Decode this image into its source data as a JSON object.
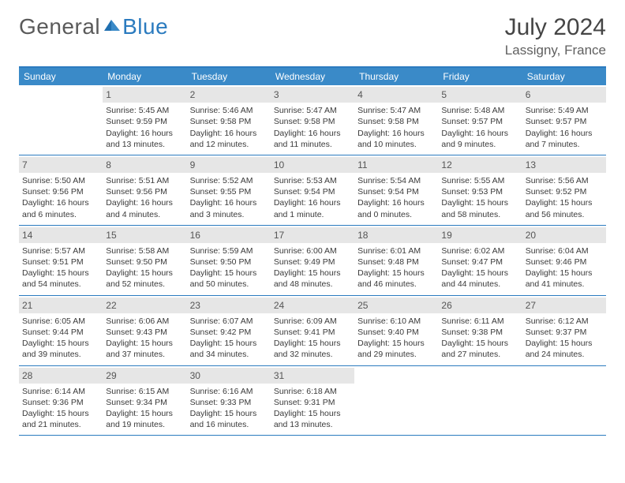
{
  "logo": {
    "general": "General",
    "blue": "Blue"
  },
  "title": "July 2024",
  "location": "Lassigny, France",
  "colors": {
    "header_bg": "#3a8ac8",
    "border": "#2b7bbf",
    "daybar": "#e6e6e6",
    "text": "#3a3a3a"
  },
  "weekdays": [
    "Sunday",
    "Monday",
    "Tuesday",
    "Wednesday",
    "Thursday",
    "Friday",
    "Saturday"
  ],
  "weeks": [
    [
      {
        "n": "",
        "sr": "",
        "ss": "",
        "dl": ""
      },
      {
        "n": "1",
        "sr": "Sunrise: 5:45 AM",
        "ss": "Sunset: 9:59 PM",
        "dl": "Daylight: 16 hours and 13 minutes."
      },
      {
        "n": "2",
        "sr": "Sunrise: 5:46 AM",
        "ss": "Sunset: 9:58 PM",
        "dl": "Daylight: 16 hours and 12 minutes."
      },
      {
        "n": "3",
        "sr": "Sunrise: 5:47 AM",
        "ss": "Sunset: 9:58 PM",
        "dl": "Daylight: 16 hours and 11 minutes."
      },
      {
        "n": "4",
        "sr": "Sunrise: 5:47 AM",
        "ss": "Sunset: 9:58 PM",
        "dl": "Daylight: 16 hours and 10 minutes."
      },
      {
        "n": "5",
        "sr": "Sunrise: 5:48 AM",
        "ss": "Sunset: 9:57 PM",
        "dl": "Daylight: 16 hours and 9 minutes."
      },
      {
        "n": "6",
        "sr": "Sunrise: 5:49 AM",
        "ss": "Sunset: 9:57 PM",
        "dl": "Daylight: 16 hours and 7 minutes."
      }
    ],
    [
      {
        "n": "7",
        "sr": "Sunrise: 5:50 AM",
        "ss": "Sunset: 9:56 PM",
        "dl": "Daylight: 16 hours and 6 minutes."
      },
      {
        "n": "8",
        "sr": "Sunrise: 5:51 AM",
        "ss": "Sunset: 9:56 PM",
        "dl": "Daylight: 16 hours and 4 minutes."
      },
      {
        "n": "9",
        "sr": "Sunrise: 5:52 AM",
        "ss": "Sunset: 9:55 PM",
        "dl": "Daylight: 16 hours and 3 minutes."
      },
      {
        "n": "10",
        "sr": "Sunrise: 5:53 AM",
        "ss": "Sunset: 9:54 PM",
        "dl": "Daylight: 16 hours and 1 minute."
      },
      {
        "n": "11",
        "sr": "Sunrise: 5:54 AM",
        "ss": "Sunset: 9:54 PM",
        "dl": "Daylight: 16 hours and 0 minutes."
      },
      {
        "n": "12",
        "sr": "Sunrise: 5:55 AM",
        "ss": "Sunset: 9:53 PM",
        "dl": "Daylight: 15 hours and 58 minutes."
      },
      {
        "n": "13",
        "sr": "Sunrise: 5:56 AM",
        "ss": "Sunset: 9:52 PM",
        "dl": "Daylight: 15 hours and 56 minutes."
      }
    ],
    [
      {
        "n": "14",
        "sr": "Sunrise: 5:57 AM",
        "ss": "Sunset: 9:51 PM",
        "dl": "Daylight: 15 hours and 54 minutes."
      },
      {
        "n": "15",
        "sr": "Sunrise: 5:58 AM",
        "ss": "Sunset: 9:50 PM",
        "dl": "Daylight: 15 hours and 52 minutes."
      },
      {
        "n": "16",
        "sr": "Sunrise: 5:59 AM",
        "ss": "Sunset: 9:50 PM",
        "dl": "Daylight: 15 hours and 50 minutes."
      },
      {
        "n": "17",
        "sr": "Sunrise: 6:00 AM",
        "ss": "Sunset: 9:49 PM",
        "dl": "Daylight: 15 hours and 48 minutes."
      },
      {
        "n": "18",
        "sr": "Sunrise: 6:01 AM",
        "ss": "Sunset: 9:48 PM",
        "dl": "Daylight: 15 hours and 46 minutes."
      },
      {
        "n": "19",
        "sr": "Sunrise: 6:02 AM",
        "ss": "Sunset: 9:47 PM",
        "dl": "Daylight: 15 hours and 44 minutes."
      },
      {
        "n": "20",
        "sr": "Sunrise: 6:04 AM",
        "ss": "Sunset: 9:46 PM",
        "dl": "Daylight: 15 hours and 41 minutes."
      }
    ],
    [
      {
        "n": "21",
        "sr": "Sunrise: 6:05 AM",
        "ss": "Sunset: 9:44 PM",
        "dl": "Daylight: 15 hours and 39 minutes."
      },
      {
        "n": "22",
        "sr": "Sunrise: 6:06 AM",
        "ss": "Sunset: 9:43 PM",
        "dl": "Daylight: 15 hours and 37 minutes."
      },
      {
        "n": "23",
        "sr": "Sunrise: 6:07 AM",
        "ss": "Sunset: 9:42 PM",
        "dl": "Daylight: 15 hours and 34 minutes."
      },
      {
        "n": "24",
        "sr": "Sunrise: 6:09 AM",
        "ss": "Sunset: 9:41 PM",
        "dl": "Daylight: 15 hours and 32 minutes."
      },
      {
        "n": "25",
        "sr": "Sunrise: 6:10 AM",
        "ss": "Sunset: 9:40 PM",
        "dl": "Daylight: 15 hours and 29 minutes."
      },
      {
        "n": "26",
        "sr": "Sunrise: 6:11 AM",
        "ss": "Sunset: 9:38 PM",
        "dl": "Daylight: 15 hours and 27 minutes."
      },
      {
        "n": "27",
        "sr": "Sunrise: 6:12 AM",
        "ss": "Sunset: 9:37 PM",
        "dl": "Daylight: 15 hours and 24 minutes."
      }
    ],
    [
      {
        "n": "28",
        "sr": "Sunrise: 6:14 AM",
        "ss": "Sunset: 9:36 PM",
        "dl": "Daylight: 15 hours and 21 minutes."
      },
      {
        "n": "29",
        "sr": "Sunrise: 6:15 AM",
        "ss": "Sunset: 9:34 PM",
        "dl": "Daylight: 15 hours and 19 minutes."
      },
      {
        "n": "30",
        "sr": "Sunrise: 6:16 AM",
        "ss": "Sunset: 9:33 PM",
        "dl": "Daylight: 15 hours and 16 minutes."
      },
      {
        "n": "31",
        "sr": "Sunrise: 6:18 AM",
        "ss": "Sunset: 9:31 PM",
        "dl": "Daylight: 15 hours and 13 minutes."
      },
      {
        "n": "",
        "sr": "",
        "ss": "",
        "dl": ""
      },
      {
        "n": "",
        "sr": "",
        "ss": "",
        "dl": ""
      },
      {
        "n": "",
        "sr": "",
        "ss": "",
        "dl": ""
      }
    ]
  ]
}
